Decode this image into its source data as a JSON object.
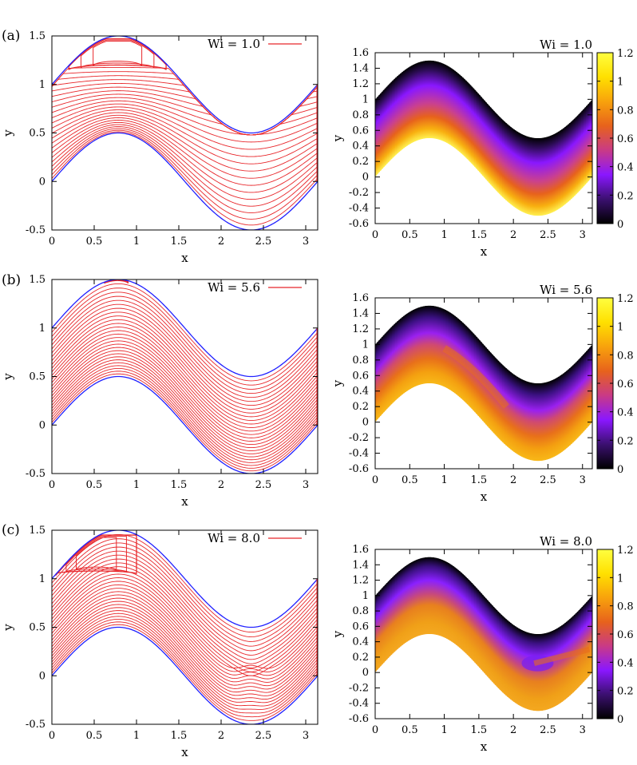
{
  "colors": {
    "streamline": "#e8262a",
    "wall": "#2020ff",
    "colormap_stops": [
      "#000000",
      "#3b1070",
      "#8a17ff",
      "#c93a86",
      "#e7621c",
      "#f8a20c",
      "#ffe000",
      "#ffff40"
    ]
  },
  "chart_data": [
    {
      "panel_label": "(a)",
      "type": "contour",
      "legend": "Wi = 1.0",
      "legend_position": "top-right",
      "xlabel": "x",
      "ylabel": "y",
      "xlim": [
        0,
        3.1416
      ],
      "ylim": [
        -0.5,
        1.5
      ],
      "xticks": [
        "0",
        "0.5",
        "1",
        "1.5",
        "2",
        "2.5",
        "3"
      ],
      "yticks": [
        "-0.5",
        "0",
        "0.5",
        "1",
        "1.5"
      ],
      "channel": {
        "lower_wall": "0.5*sin(2x)",
        "upper_wall": "1 + 0.5*sin(2x)"
      },
      "streamline_count": 24,
      "recirculation_region": {
        "x_range": [
          0.2,
          1.35
        ],
        "y_range": [
          1.15,
          1.47
        ]
      }
    },
    {
      "panel_label": "",
      "type": "heatmap",
      "title": "Wi = 1.0",
      "xlabel": "x",
      "ylabel": "y",
      "xlim": [
        0,
        3.1416
      ],
      "ylim": [
        -0.6,
        1.6
      ],
      "xticks": [
        "0",
        "0.5",
        "1",
        "1.5",
        "2",
        "2.5",
        "3"
      ],
      "yticks": [
        "-0.6",
        "-0.4",
        "-0.2",
        "0",
        "0.2",
        "0.4",
        "0.6",
        "0.8",
        "1",
        "1.2",
        "1.4",
        "1.6"
      ],
      "colorbar": {
        "range": [
          0,
          1.2
        ],
        "ticks": [
          "0",
          "0.2",
          "0.4",
          "0.6",
          "0.8",
          "1",
          "1.2"
        ]
      }
    },
    {
      "panel_label": "(b)",
      "type": "contour",
      "legend": "Wi = 5.6",
      "legend_position": "top-right",
      "xlabel": "x",
      "ylabel": "y",
      "xlim": [
        0,
        3.1416
      ],
      "ylim": [
        -0.5,
        1.5
      ],
      "xticks": [
        "0",
        "0.5",
        "1",
        "1.5",
        "2",
        "2.5",
        "3"
      ],
      "yticks": [
        "-0.5",
        "0",
        "0.5",
        "1",
        "1.5"
      ],
      "channel": {
        "lower_wall": "0.5*sin(2x)",
        "upper_wall": "1 + 0.5*sin(2x)"
      },
      "streamline_count": 28,
      "recirculation_region": {
        "x_range": [
          0.62,
          0.9
        ],
        "y_range": [
          1.46,
          1.5
        ]
      }
    },
    {
      "panel_label": "",
      "type": "heatmap",
      "title": "Wi = 5.6",
      "xlabel": "x",
      "ylabel": "y",
      "xlim": [
        0,
        3.1416
      ],
      "ylim": [
        -0.6,
        1.6
      ],
      "xticks": [
        "0",
        "0.5",
        "1",
        "1.5",
        "2",
        "2.5",
        "3"
      ],
      "yticks": [
        "-0.6",
        "-0.4",
        "-0.2",
        "0",
        "0.2",
        "0.4",
        "0.6",
        "0.8",
        "1",
        "1.2",
        "1.4",
        "1.6"
      ],
      "colorbar": {
        "range": [
          0,
          1.2
        ],
        "ticks": [
          "0",
          "0.2",
          "0.4",
          "0.6",
          "0.8",
          "1",
          "1.2"
        ]
      }
    },
    {
      "panel_label": "(c)",
      "type": "contour",
      "legend": "Wi = 8.0",
      "legend_position": "top-right",
      "xlabel": "x",
      "ylabel": "y",
      "xlim": [
        0,
        3.1416
      ],
      "ylim": [
        -0.5,
        1.5
      ],
      "xticks": [
        "0",
        "0.5",
        "1",
        "1.5",
        "2",
        "2.5",
        "3"
      ],
      "yticks": [
        "-0.5",
        "0",
        "0.5",
        "1",
        "1.5"
      ],
      "channel": {
        "lower_wall": "0.5*sin(2x)",
        "upper_wall": "1 + 0.5*sin(2x)"
      },
      "streamline_count": 28,
      "recirculation_region": {
        "x_range": [
          0.05,
          1.0
        ],
        "y_range": [
          1.05,
          1.45
        ]
      }
    },
    {
      "panel_label": "",
      "type": "heatmap",
      "title": "Wi = 8.0",
      "xlabel": "x",
      "ylabel": "y",
      "xlim": [
        0,
        3.1416
      ],
      "ylim": [
        -0.6,
        1.6
      ],
      "xticks": [
        "0",
        "0.5",
        "1",
        "1.5",
        "2",
        "2.5",
        "3"
      ],
      "yticks": [
        "-0.6",
        "-0.4",
        "-0.2",
        "0",
        "0.2",
        "0.4",
        "0.6",
        "0.8",
        "1",
        "1.2",
        "1.4",
        "1.6"
      ],
      "colorbar": {
        "range": [
          0,
          1.2
        ],
        "ticks": [
          "0",
          "0.2",
          "0.4",
          "0.6",
          "0.8",
          "1",
          "1.2"
        ]
      }
    }
  ]
}
